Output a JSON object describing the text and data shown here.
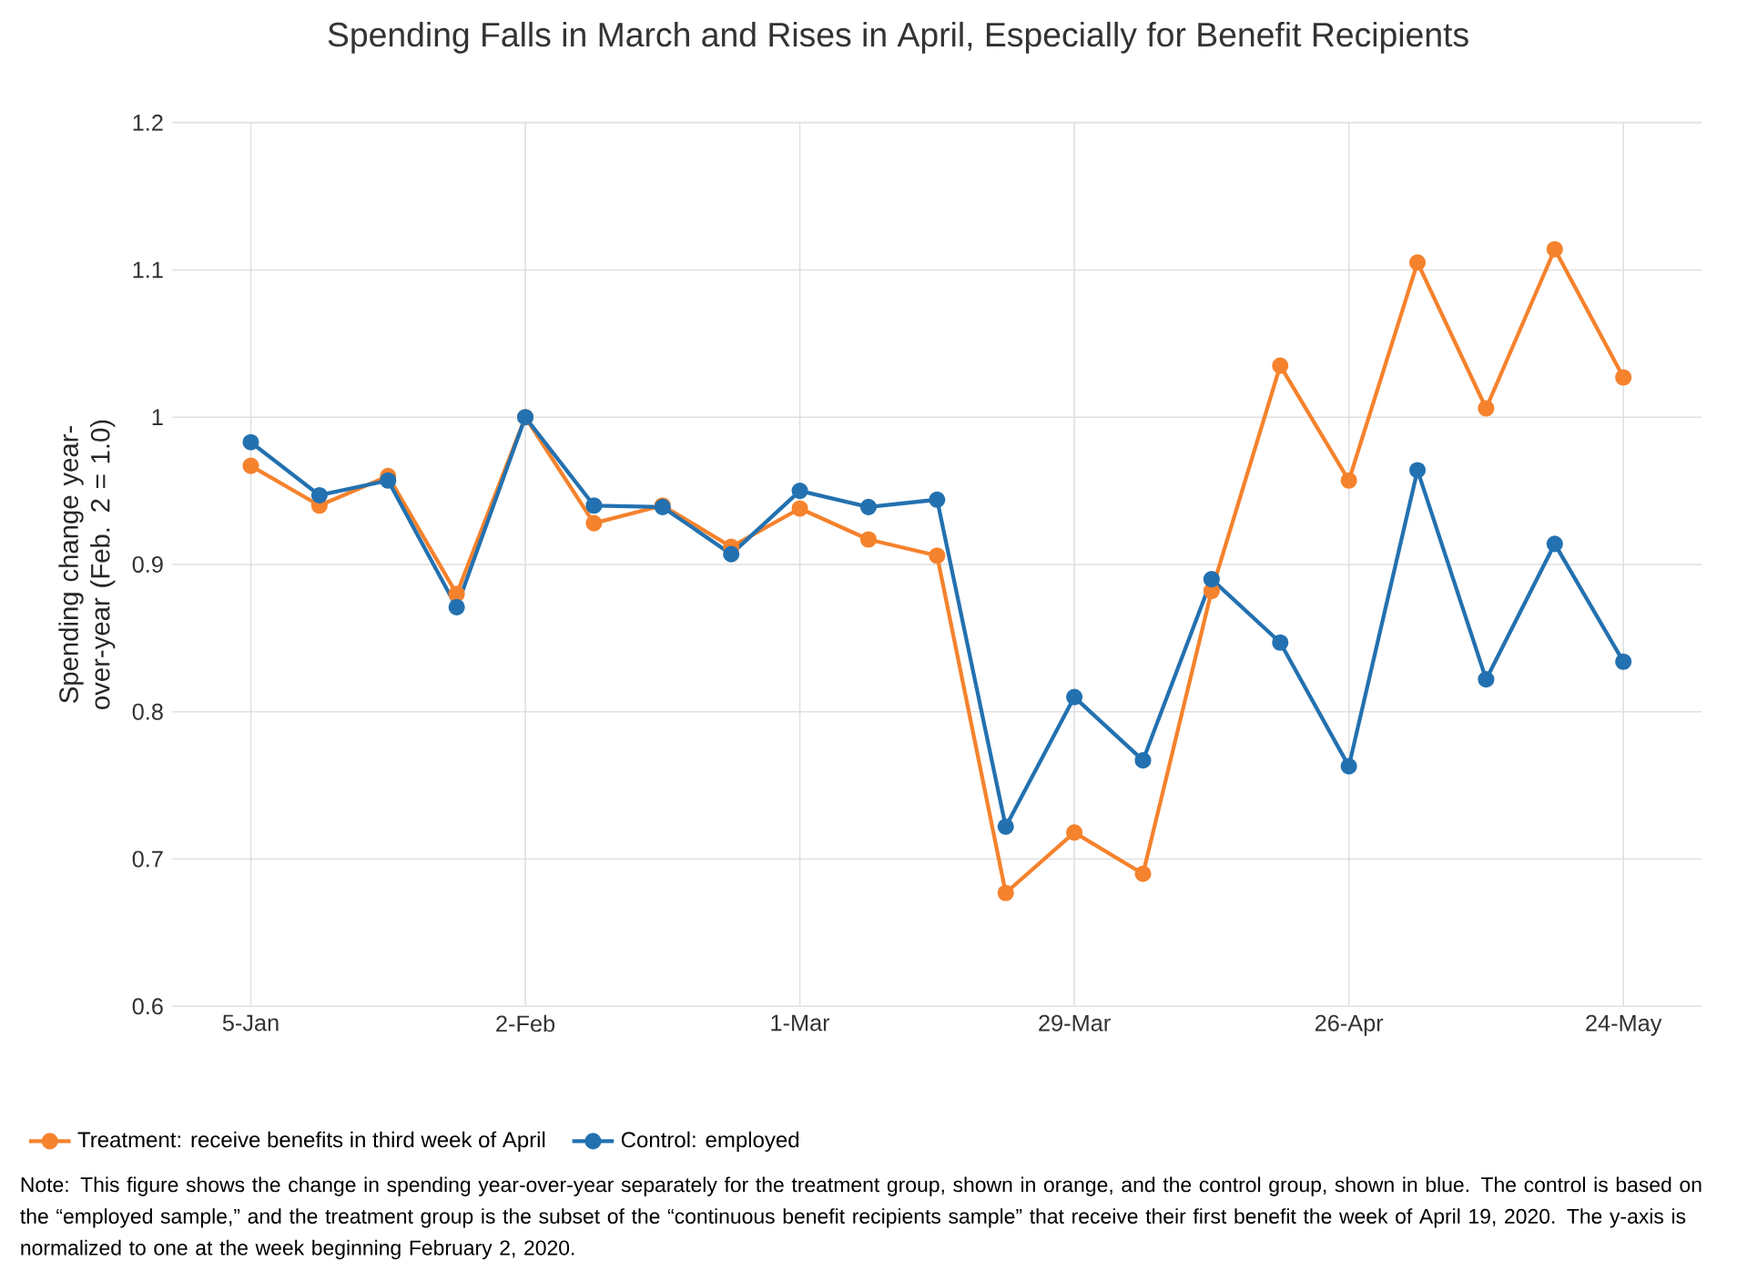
{
  "chart_data": {
    "type": "line",
    "title": "Spending Falls in March and Rises in April, Especially for Benefit Recipients",
    "ylabel": "Spending change year-over-year (Feb. 2 = 1.0)",
    "x": [
      "2020-01-05",
      "2020-01-12",
      "2020-01-19",
      "2020-01-26",
      "2020-02-02",
      "2020-02-09",
      "2020-02-16",
      "2020-02-23",
      "2020-03-01",
      "2020-03-08",
      "2020-03-15",
      "2020-03-22",
      "2020-03-29",
      "2020-04-05",
      "2020-04-12",
      "2020-04-19",
      "2020-04-26",
      "2020-05-03",
      "2020-05-10",
      "2020-05-17",
      "2020-05-24"
    ],
    "series": [
      {
        "name": "Treatment: receive benefits in third week of April",
        "color": "#f5822d",
        "values": [
          0.967,
          0.94,
          0.96,
          0.88,
          1.0,
          0.928,
          0.94,
          0.912,
          0.938,
          0.917,
          0.906,
          0.677,
          0.718,
          0.69,
          0.882,
          1.035,
          0.957,
          1.105,
          1.006,
          1.114,
          1.027
        ]
      },
      {
        "name": "Control: employed",
        "color": "#2371b0",
        "values": [
          0.983,
          0.947,
          0.957,
          0.871,
          1.0,
          0.94,
          0.939,
          0.907,
          0.95,
          0.939,
          0.944,
          0.722,
          0.81,
          0.767,
          0.89,
          0.847,
          0.763,
          0.964,
          0.822,
          0.914,
          0.834
        ]
      }
    ],
    "xlim": [
      "2019-12-28",
      "2020-06-01"
    ],
    "xticks": [
      {
        "value": "2020-01-05",
        "label": "5-Jan"
      },
      {
        "value": "2020-02-02",
        "label": "2-Feb"
      },
      {
        "value": "2020-03-01",
        "label": "1-Mar"
      },
      {
        "value": "2020-03-29",
        "label": "29-Mar"
      },
      {
        "value": "2020-04-26",
        "label": "26-Apr"
      },
      {
        "value": "2020-05-24",
        "label": "24-May"
      }
    ],
    "ylim": [
      0.6,
      1.2
    ],
    "yticks": [
      0.6,
      0.7,
      0.8,
      0.9,
      1,
      1.1,
      1.2
    ],
    "grid": true,
    "legend": "bottom left",
    "marker": "circle",
    "line_style": "solid",
    "annotations": [
      "Note: This figure shows the change in spending year-over-year separately for the treatment group, shown in orange, and the control group, shown in blue. The control is based on the “employed sample,” and the treatment group is the subset of the “continuous benefit recipients sample” that receive their first benefit the week of April 19, 2020. The y-axis is normalized to one at the week beginning February 2, 2020."
    ]
  }
}
